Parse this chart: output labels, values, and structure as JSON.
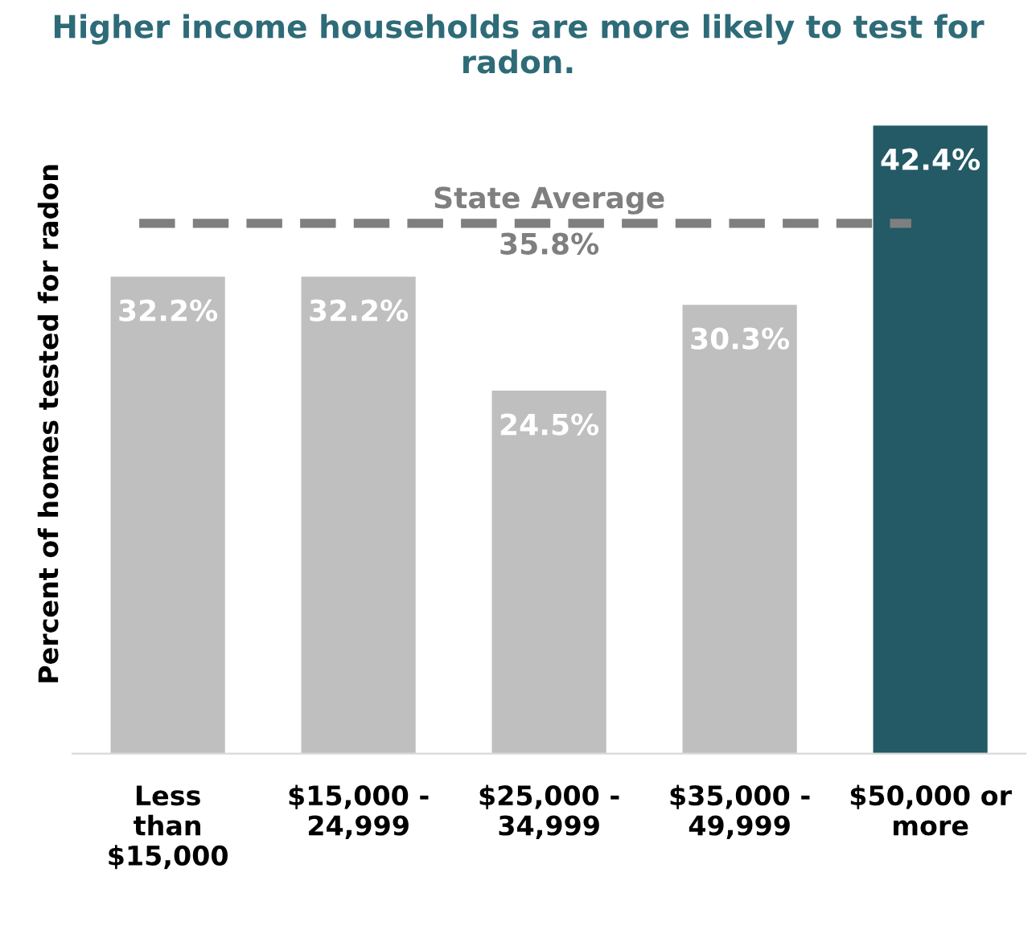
{
  "chart_data": {
    "type": "bar",
    "title": "Higher income households are more likely to test for radon.",
    "ylabel": "Percent of homes tested for radon",
    "categories": [
      "Less\nthan\n$15,000",
      "$15,000 -\n24,999",
      "$25,000 -\n34,999",
      "$35,000 -\n49,999",
      "$50,000 or\nmore"
    ],
    "values": [
      32.2,
      32.2,
      24.5,
      30.3,
      42.4
    ],
    "colors": [
      "#bfbfbf",
      "#bfbfbf",
      "#bfbfbf",
      "#bfbfbf",
      "#235a66"
    ],
    "value_labels": [
      "32.2%",
      "32.2%",
      "24.5%",
      "30.3%",
      "42.4%"
    ],
    "tick_labels": "x",
    "grid": false,
    "legend": false,
    "ref_lines": [
      {
        "axis": "y",
        "value": 35.8,
        "label": "State Average\n35.8%",
        "color": "#7f7f7f",
        "line_style": "dashed"
      }
    ]
  }
}
